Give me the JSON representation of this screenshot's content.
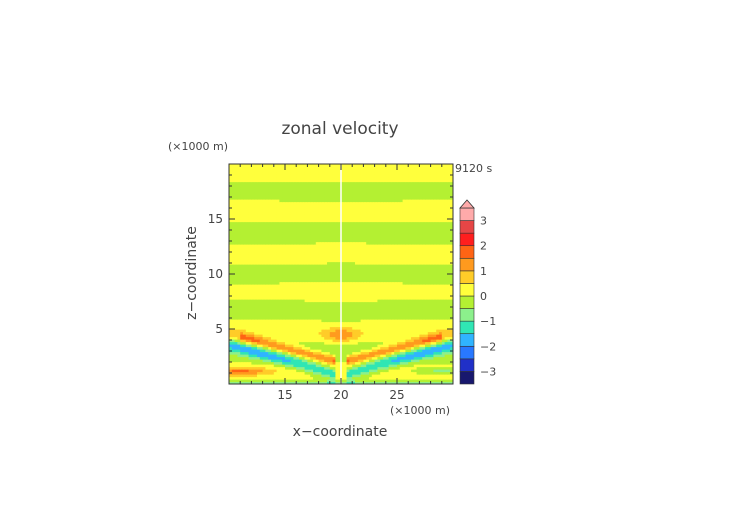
{
  "chart_data": {
    "type": "heatmap",
    "title": "zonal velocity",
    "time_label": "9120 s",
    "xlabel": "x−coordinate",
    "ylabel": "z−coordinate",
    "x_unit": "(×1000 m)",
    "y_unit": "(×1000 m)",
    "xlim": [
      10,
      30
    ],
    "ylim": [
      0,
      20
    ],
    "x_ticks": [
      15,
      20,
      25
    ],
    "y_ticks": [
      5,
      10,
      15
    ],
    "colorbar": {
      "levels": [
        -3.5,
        -3,
        -2.5,
        -2,
        -1.5,
        -1,
        -0.5,
        0,
        0.5,
        1,
        1.5,
        2,
        2.5,
        3,
        3.5
      ],
      "tick_labels": [
        "3",
        "2",
        "1",
        "0",
        "−1",
        "−2",
        "−3"
      ],
      "tick_values": [
        3,
        2,
        1,
        0,
        -1,
        -2,
        -3
      ],
      "colors": [
        "#18186e",
        "#2030c8",
        "#2878ff",
        "#30b4ff",
        "#30e6b4",
        "#8cf08c",
        "#b4f032",
        "#ffff3c",
        "#ffcc28",
        "#ff9a1e",
        "#ff6414",
        "#ff1e1e",
        "#e64646",
        "#ffaaaa"
      ],
      "extend": "max"
    }
  }
}
